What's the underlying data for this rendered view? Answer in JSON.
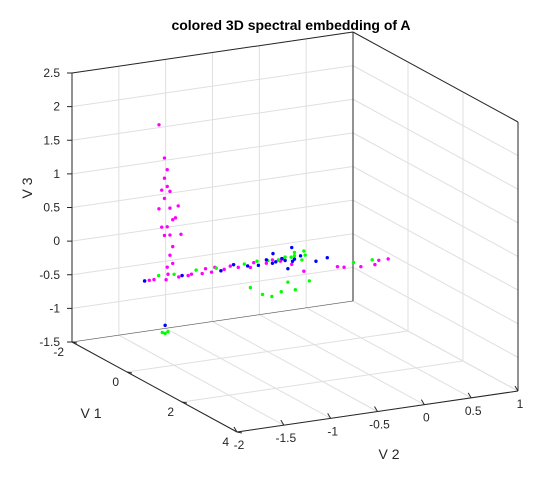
{
  "chart_data": {
    "type": "scatter",
    "projection": "3d",
    "title": "colored 3D spectral embedding of A",
    "xlabel": "V 1",
    "ylabel": "V 2",
    "zlabel": "V 3",
    "xlim": [
      -2,
      4
    ],
    "ylim": [
      -2,
      1
    ],
    "zlim": [
      -1.5,
      2.5
    ],
    "xticks": [
      "-2",
      "0",
      "2",
      "4"
    ],
    "yticks": [
      "-2",
      "-1.5",
      "-1",
      "-0.5",
      "0",
      "0.5",
      "1"
    ],
    "zticks": [
      "-1.5",
      "-1",
      "-0.5",
      "0",
      "0.5",
      "1",
      "1.5",
      "2",
      "2.5"
    ],
    "grid": true,
    "colors": {
      "magenta": "#ff00ff",
      "green": "#00ff00",
      "blue": "#0000ff",
      "axis": "#262626",
      "grid": "#dfdfdf"
    },
    "series": [
      {
        "color": "#ff00ff",
        "points": [
          [
            -0.2,
            -1.6,
            2.05
          ],
          [
            0,
            -1.6,
            1.6
          ],
          [
            0.1,
            -1.6,
            1.45
          ],
          [
            0,
            -1.6,
            1.3
          ],
          [
            0.1,
            -1.6,
            1.2
          ],
          [
            0.2,
            -1.6,
            1.15
          ],
          [
            -0.1,
            -1.6,
            1.1
          ],
          [
            0,
            -1.6,
            1.0
          ],
          [
            0.2,
            -1.6,
            0.9
          ],
          [
            -0.2,
            -1.6,
            0.8
          ],
          [
            0.3,
            -1.6,
            0.75
          ],
          [
            0.1,
            -1.6,
            0.6
          ],
          [
            -0.1,
            -1.6,
            0.55
          ],
          [
            0.2,
            -1.6,
            0.5
          ],
          [
            0,
            -1.6,
            0.45
          ],
          [
            0.3,
            -1.6,
            0.35
          ],
          [
            0.2,
            -1.6,
            0.2
          ],
          [
            0.3,
            -1.6,
            0.1
          ],
          [
            0.1,
            -1.6,
            0.0
          ],
          [
            0.5,
            -1.6,
            1.0
          ],
          [
            0.4,
            -1.6,
            0.8
          ],
          [
            0.6,
            -1.6,
            0.6
          ],
          [
            0.5,
            0.1,
            -0.25
          ],
          [
            0.4,
            0.2,
            -0.3
          ],
          [
            0.5,
            0.35,
            -0.3
          ],
          [
            0.5,
            0.5,
            -0.3
          ],
          [
            0.3,
            0.6,
            -0.3
          ],
          [
            0.3,
            0.7,
            -0.3
          ],
          [
            0.2,
            -0.3,
            -0.2
          ],
          [
            0.3,
            -0.2,
            -0.3
          ],
          [
            0.2,
            -0.4,
            -0.1
          ],
          [
            0.3,
            -1.9,
            -0.1
          ],
          [
            0.3,
            -1.85,
            -0.1
          ],
          [
            0.3,
            -1.8,
            -0.1
          ],
          [
            0.4,
            -1.7,
            -0.1
          ],
          [
            0.3,
            -1.65,
            -0.05
          ],
          [
            0.35,
            -1.55,
            -0.1
          ],
          [
            0.3,
            -1.5,
            -0.1
          ],
          [
            0.35,
            -1.45,
            -0.1
          ],
          [
            0.3,
            -1.4,
            -0.1
          ],
          [
            0.35,
            -1.3,
            -0.1
          ],
          [
            0.3,
            -1.25,
            -0.05
          ],
          [
            0.35,
            -1.2,
            -0.1
          ],
          [
            0.3,
            -1.15,
            -0.05
          ],
          [
            0.35,
            -1.1,
            -0.1
          ],
          [
            0.3,
            -1.05,
            -0.1
          ],
          [
            0.35,
            -1.0,
            -0.05
          ],
          [
            0.3,
            -0.9,
            -0.1
          ],
          [
            0.4,
            -0.8,
            -0.1
          ],
          [
            0.35,
            -0.75,
            -0.05
          ],
          [
            0.3,
            -0.6,
            -0.1
          ],
          [
            0.35,
            -0.55,
            -0.05
          ],
          [
            0.3,
            -0.45,
            -0.1
          ],
          [
            0.4,
            -0.5,
            -0.05
          ]
        ]
      },
      {
        "color": "#00ff00",
        "points": [
          [
            0.3,
            -1.75,
            -0.05
          ],
          [
            0.35,
            -1.6,
            -0.05
          ],
          [
            0.3,
            -1.35,
            -0.05
          ],
          [
            0.35,
            -1.15,
            -0.05
          ],
          [
            0.3,
            -0.95,
            -0.05
          ],
          [
            0.35,
            -0.85,
            -0.05
          ],
          [
            0.3,
            -0.7,
            -0.05
          ],
          [
            0.35,
            -0.6,
            -0.05
          ],
          [
            0.4,
            -0.5,
            -0.05
          ],
          [
            0.3,
            -0.4,
            -0.05
          ],
          [
            0.35,
            -0.35,
            -0.05
          ],
          [
            0.3,
            -0.3,
            -0.05
          ],
          [
            0.4,
            -0.25,
            -0.1
          ],
          [
            0.35,
            -0.2,
            -0.05
          ],
          [
            0.5,
            -0.2,
            -0.4
          ],
          [
            0.5,
            -0.5,
            -0.5
          ],
          [
            0.5,
            -0.35,
            -0.5
          ],
          [
            0.4,
            -0.4,
            -0.4
          ],
          [
            0.5,
            -0.6,
            -0.55
          ],
          [
            0.5,
            -0.7,
            -0.5
          ],
          [
            0.4,
            -0.8,
            -0.4
          ],
          [
            0.3,
            -0.2,
            0.0
          ],
          [
            0.3,
            -0.3,
            0.0
          ],
          [
            -1.1,
            -1.3,
            -1.3
          ],
          [
            -1.1,
            -1.27,
            -1.32
          ],
          [
            -1.1,
            -1.24,
            -1.3
          ],
          [
            0.4,
            0.3,
            -0.25
          ],
          [
            0.4,
            0.5,
            -0.25
          ]
        ]
      },
      {
        "color": "#0000ff",
        "points": [
          [
            0.3,
            -1.9,
            -0.1
          ],
          [
            0.3,
            -1.5,
            -0.1
          ],
          [
            0.35,
            -1.1,
            -0.1
          ],
          [
            0.3,
            -0.95,
            -0.05
          ],
          [
            0.3,
            -0.8,
            -0.1
          ],
          [
            0.35,
            -0.7,
            -0.1
          ],
          [
            0.3,
            -0.6,
            -0.05
          ],
          [
            0.35,
            -0.55,
            -0.1
          ],
          [
            0.3,
            -0.5,
            -0.1
          ],
          [
            0.35,
            -0.45,
            -0.05
          ],
          [
            0.3,
            -0.4,
            -0.1
          ],
          [
            0.4,
            -0.35,
            -0.1
          ],
          [
            0.3,
            -0.3,
            -0.1
          ],
          [
            0.35,
            -0.25,
            -0.05
          ],
          [
            0.2,
            -0.5,
            0.0
          ],
          [
            0.2,
            -0.3,
            0.05
          ],
          [
            0.4,
            -0.4,
            -0.2
          ],
          [
            0.4,
            -0.1,
            -0.15
          ],
          [
            0.3,
            0.05,
            -0.15
          ],
          [
            -1.1,
            -1.27,
            -1.2
          ]
        ]
      }
    ]
  }
}
